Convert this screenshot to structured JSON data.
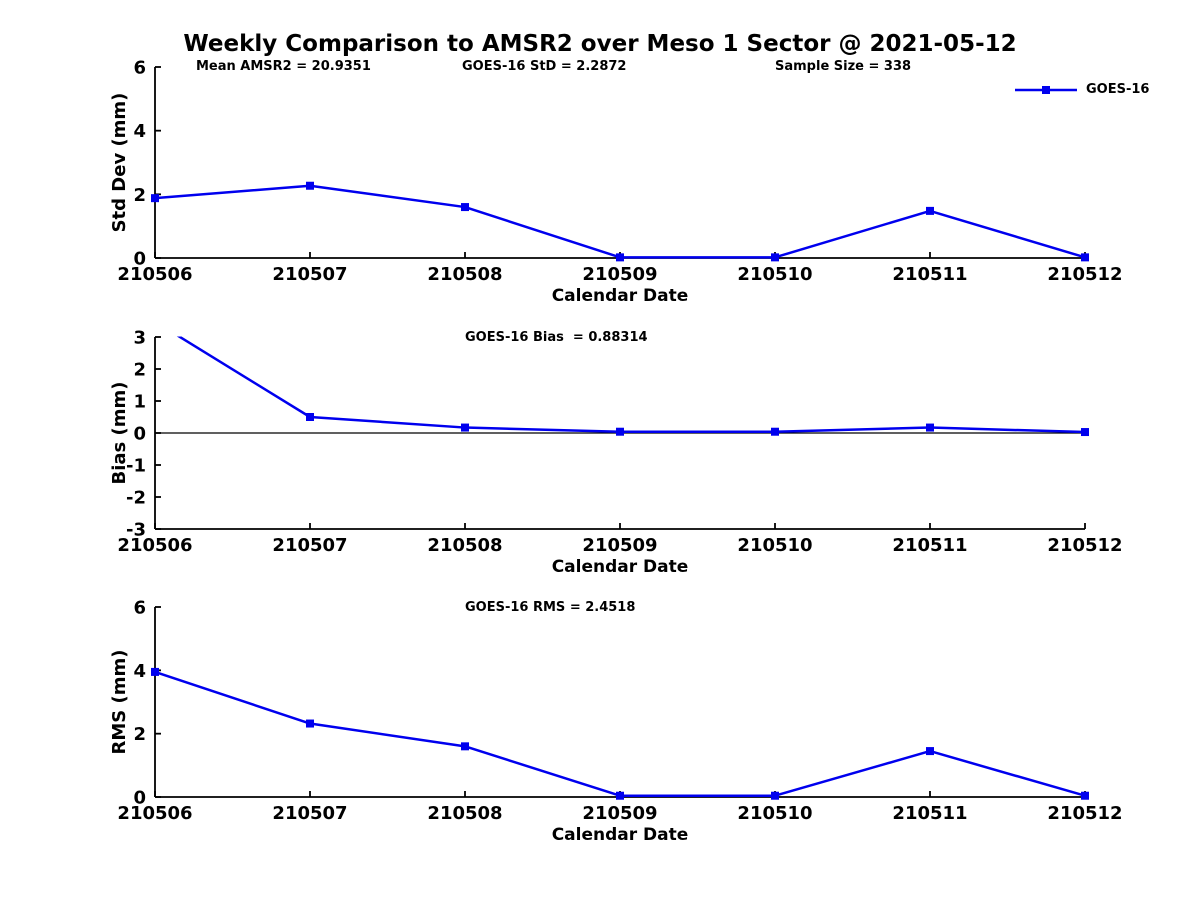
{
  "title": "Weekly Comparison to AMSR2 over Meso 1 Sector @ 2021-05-12",
  "annotations": {
    "mean_amsr2": "Mean AMSR2 = 20.9351",
    "goes_std": "GOES-16 StD = 2.2872",
    "sample_size": "Sample Size = 338",
    "bias_title": "GOES-16 Bias  = 0.88314",
    "rms_title": "GOES-16 RMS = 2.4518"
  },
  "legend": {
    "label": "GOES-16"
  },
  "colors": {
    "series": "#0000EE",
    "axis": "#000000",
    "text": "#000000"
  },
  "chart_data": [
    {
      "type": "line",
      "title": "Std Dev subplot",
      "categories": [
        "210506",
        "210507",
        "210508",
        "210509",
        "210510",
        "210511",
        "210512"
      ],
      "series": [
        {
          "name": "GOES-16",
          "values": [
            1.88,
            2.27,
            1.6,
            0.02,
            0.02,
            1.48,
            0.02
          ]
        }
      ],
      "xlabel": "Calendar Date",
      "ylabel": "Std Dev (mm)",
      "ylim": [
        0,
        6
      ],
      "yticks": [
        0,
        2,
        4,
        6
      ],
      "zero_line": false,
      "grid": false,
      "legend_position": "top-right"
    },
    {
      "type": "line",
      "title": "Bias subplot",
      "categories": [
        "210506",
        "210507",
        "210508",
        "210509",
        "210510",
        "210511",
        "210512"
      ],
      "series": [
        {
          "name": "GOES-16",
          "values": [
            3.48,
            0.5,
            0.17,
            0.04,
            0.04,
            0.17,
            0.03
          ]
        }
      ],
      "xlabel": "Calendar Date",
      "ylabel": "Bias (mm)",
      "ylim": [
        -3,
        3
      ],
      "yticks": [
        -3,
        -2,
        -1,
        0,
        1,
        2,
        3
      ],
      "zero_line": true,
      "grid": false,
      "note_first_point_clipped_above_ylim": true
    },
    {
      "type": "line",
      "title": "RMS subplot",
      "categories": [
        "210506",
        "210507",
        "210508",
        "210509",
        "210510",
        "210511",
        "210512"
      ],
      "series": [
        {
          "name": "GOES-16",
          "values": [
            3.95,
            2.32,
            1.6,
            0.04,
            0.04,
            1.45,
            0.04
          ]
        }
      ],
      "xlabel": "Calendar Date",
      "ylabel": "RMS (mm)",
      "ylim": [
        0,
        6
      ],
      "yticks": [
        0,
        2,
        4,
        6
      ],
      "zero_line": false,
      "grid": false
    }
  ]
}
